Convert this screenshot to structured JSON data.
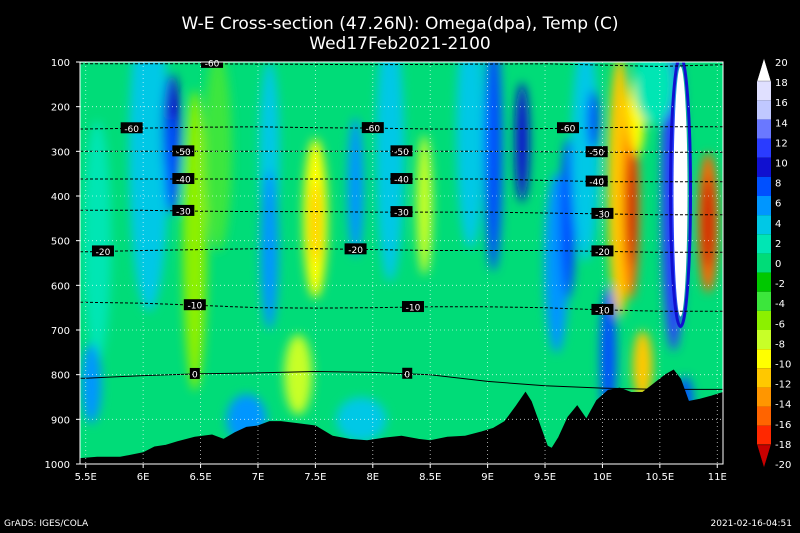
{
  "chart_data": {
    "type": "heatmap",
    "title": "W-E Cross-section (47.26N): Omega(dpa), Temp (C)",
    "subtitle": "Wed17Feb2021-2100",
    "x_ticks": [
      "5.5E",
      "6E",
      "6.5E",
      "7E",
      "7.5E",
      "8E",
      "8.5E",
      "9E",
      "9.5E",
      "10E",
      "10.5E",
      "11E"
    ],
    "x_tick_values": [
      5.5,
      6,
      6.5,
      7,
      7.5,
      8,
      8.5,
      9,
      9.5,
      10,
      10.5,
      11
    ],
    "y_ticks": [
      "100",
      "200",
      "300",
      "400",
      "500",
      "600",
      "700",
      "800",
      "900",
      "1000"
    ],
    "y_tick_values": [
      100,
      200,
      300,
      400,
      500,
      600,
      700,
      800,
      900,
      1000
    ],
    "xlim": [
      5.45,
      11.05
    ],
    "ylim": [
      1000,
      100
    ],
    "colorbar": {
      "labels": [
        "20",
        "18",
        "16",
        "14",
        "12",
        "10",
        "8",
        "6",
        "4",
        "2",
        "0",
        "-2",
        "-4",
        "-6",
        "-8",
        "-10",
        "-12",
        "-14",
        "-16",
        "-18",
        "-20"
      ],
      "colors": [
        "#ffffff",
        "#e0e0ff",
        "#c0c8ff",
        "#6a78ff",
        "#2a3cff",
        "#1010d0",
        "#0050ff",
        "#0096ff",
        "#00c8e6",
        "#00e6b4",
        "#00dc78",
        "#00c800",
        "#3ce63c",
        "#8cf000",
        "#c8ff28",
        "#ffff00",
        "#ffc800",
        "#ff9600",
        "#ff6400",
        "#ff2800",
        "#c80000"
      ]
    },
    "temperature_contours": [
      {
        "label": "-60",
        "label_x": [
          5.9,
          8.0,
          9.7
        ]
      },
      {
        "label": "-50",
        "label_x": [
          6.35,
          8.25,
          9.95
        ]
      },
      {
        "label": "-40",
        "label_x": [
          6.35,
          8.25,
          9.95
        ]
      },
      {
        "label": "-30",
        "label_x": [
          6.35,
          8.25,
          10.0
        ]
      },
      {
        "label": "-20",
        "label_x": [
          5.65,
          7.85,
          10.0
        ]
      },
      {
        "label": "-10",
        "label_x": [
          6.45,
          8.35,
          10.0
        ]
      },
      {
        "label": "0",
        "label_x": [
          6.45,
          8.3
        ]
      }
    ],
    "top_contour_label": "-60",
    "temperature_contour_levels": [
      {
        "label": "-60",
        "p": [
          250,
          248,
          246,
          245,
          247,
          248,
          250,
          250,
          249,
          247,
          245
        ]
      },
      {
        "label": "-50",
        "p": [
          300,
          300,
          300,
          300,
          300,
          300,
          300,
          300,
          301,
          302,
          302
        ]
      },
      {
        "label": "-40",
        "p": [
          362,
          362,
          362,
          362,
          362,
          362,
          362,
          362,
          365,
          368,
          368
        ]
      },
      {
        "label": "-30",
        "p": [
          432,
          432,
          434,
          435,
          435,
          436,
          436,
          436,
          438,
          440,
          442
        ]
      },
      {
        "label": "-20",
        "p": [
          525,
          522,
          520,
          518,
          518,
          520,
          522,
          522,
          522,
          524,
          526
        ]
      },
      {
        "label": "-10",
        "p": [
          638,
          640,
          645,
          650,
          651,
          650,
          648,
          648,
          650,
          655,
          658
        ]
      },
      {
        "label": "0",
        "p": [
          808,
          802,
          798,
          796,
          793,
          795,
          800,
          815,
          825,
          830,
          833
        ]
      }
    ],
    "terrain": {
      "x": [
        5.45,
        5.6,
        5.8,
        6.0,
        6.1,
        6.2,
        6.3,
        6.45,
        6.6,
        6.7,
        6.8,
        6.9,
        7.0,
        7.1,
        7.2,
        7.35,
        7.5,
        7.65,
        7.8,
        7.95,
        8.1,
        8.25,
        8.4,
        8.5,
        8.65,
        8.8,
        8.95,
        9.05,
        9.15,
        9.25,
        9.33,
        9.38,
        9.45,
        9.52,
        9.56,
        9.62,
        9.7,
        9.78,
        9.86,
        9.95,
        10.05,
        10.15,
        10.25,
        10.35,
        10.45,
        10.55,
        10.62,
        10.68,
        10.75,
        10.85,
        10.95,
        11.05
      ],
      "p": [
        988,
        985,
        985,
        975,
        962,
        958,
        950,
        940,
        935,
        945,
        930,
        918,
        915,
        905,
        905,
        910,
        915,
        938,
        945,
        948,
        942,
        938,
        945,
        948,
        940,
        938,
        928,
        920,
        905,
        870,
        840,
        860,
        910,
        960,
        965,
        940,
        895,
        870,
        900,
        858,
        835,
        830,
        840,
        840,
        820,
        800,
        790,
        810,
        860,
        855,
        848,
        840
      ]
    }
  },
  "footer": {
    "left": "GrADS: IGES/COLA",
    "right": "2021-02-16-04:51"
  }
}
